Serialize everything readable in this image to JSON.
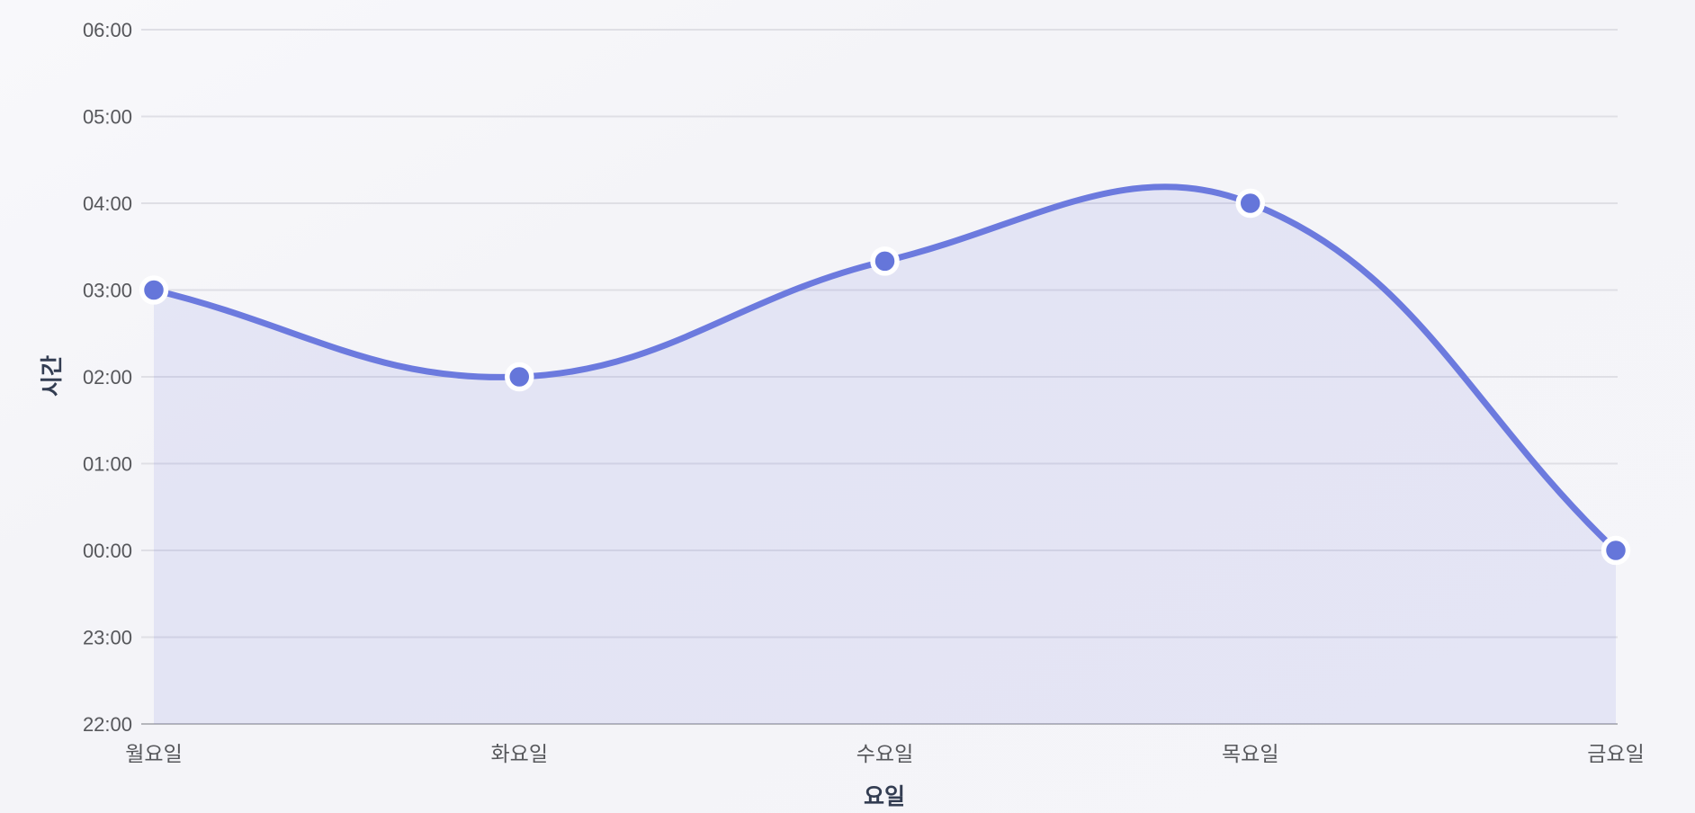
{
  "chart_data": {
    "type": "area",
    "title": "",
    "xlabel": "요일",
    "ylabel": "시간",
    "categories": [
      "월요일",
      "화요일",
      "수요일",
      "목요일",
      "금요일"
    ],
    "series": [
      {
        "name": "시간",
        "value_labels": [
          "03:00",
          "02:00",
          "03:20",
          "04:00",
          "00:00"
        ],
        "values_hours_above_2200": [
          5,
          4,
          5.333,
          6,
          2
        ]
      }
    ],
    "y_axis": {
      "tick_labels": [
        "06:00",
        "05:00",
        "04:00",
        "03:00",
        "02:00",
        "01:00",
        "00:00",
        "23:00",
        "22:00"
      ],
      "top_label": "06:00",
      "bottom_label": "22:00",
      "hours_span": 8
    },
    "x_axis": {
      "tick_labels": [
        "월요일",
        "화요일",
        "수요일",
        "목요일",
        "금요일"
      ]
    },
    "grid": true,
    "legend": false,
    "smooth": true,
    "curve_tension": 0.4,
    "colors": {
      "background": "#f5f5f9",
      "grid": "#dfdfe5",
      "axis_line": "#b5b6bc",
      "line": "#6c7ade",
      "point": "#6576da",
      "point_ring": "#ffffff",
      "area_fill": "rgba(105,119,219,0.12)",
      "tick_text": "#56575b",
      "axis_title_text": "#333d52"
    }
  }
}
